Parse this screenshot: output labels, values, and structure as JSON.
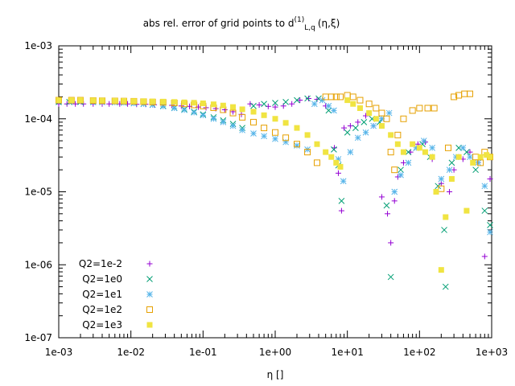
{
  "chart_data": {
    "type": "scatter",
    "title": {
      "main": "abs rel. error of grid points to d",
      "sup": "(1)",
      "sub": "L,q",
      "tail": "(η,ξ)"
    },
    "xlabel": "η []",
    "ylabel": "",
    "xscale": "log",
    "yscale": "log",
    "xlim": [
      0.001,
      1000
    ],
    "ylim": [
      1e-07,
      0.001
    ],
    "xticks": [
      "1e-03",
      "1e-02",
      "1e-01",
      "1e+00",
      "1e+01",
      "1e+02",
      "1e+03"
    ],
    "yticks": [
      "1e-07",
      "1e-06",
      "1e-05",
      "1e-04",
      "1e-03"
    ],
    "grid": false,
    "legend_position": "bottom-left",
    "series": [
      {
        "name": "Q2=1e-2",
        "marker": "plus",
        "color": "#9400d3",
        "points": [
          [
            0.001,
            0.00016
          ],
          [
            0.0013,
            0.00016
          ],
          [
            0.0017,
            0.00016
          ],
          [
            0.0022,
            0.00016
          ],
          [
            0.003,
            0.00016
          ],
          [
            0.004,
            0.00016
          ],
          [
            0.005,
            0.00016
          ],
          [
            0.007,
            0.00016
          ],
          [
            0.009,
            0.00016
          ],
          [
            0.012,
            0.000158
          ],
          [
            0.016,
            0.000158
          ],
          [
            0.021,
            0.000156
          ],
          [
            0.028,
            0.000155
          ],
          [
            0.037,
            0.000153
          ],
          [
            0.05,
            0.00015
          ],
          [
            0.065,
            0.000148
          ],
          [
            0.086,
            0.000145
          ],
          [
            0.11,
            0.000142
          ],
          [
            0.15,
            0.000138
          ],
          [
            0.2,
            0.000133
          ],
          [
            0.26,
            0.000125
          ],
          [
            0.34,
            0.000115
          ],
          [
            0.45,
            0.00016
          ],
          [
            0.6,
            0.000155
          ],
          [
            0.8,
            0.000148
          ],
          [
            1.0,
            0.000145
          ],
          [
            1.3,
            0.00015
          ],
          [
            1.7,
            0.00016
          ],
          [
            2.2,
            0.00018
          ],
          [
            2.9,
            0.00019
          ],
          [
            3.8,
            0.000185
          ],
          [
            5.0,
            0.00015
          ],
          [
            6.6,
            4e-05
          ],
          [
            7.5,
            1.8e-05
          ],
          [
            8.3,
            5.5e-06
          ],
          [
            9.0,
            7.5e-05
          ],
          [
            11,
            8e-05
          ],
          [
            14,
            9e-05
          ],
          [
            18,
            0.00011
          ],
          [
            23,
            8e-05
          ],
          [
            30,
            8.5e-06
          ],
          [
            36,
            5e-06
          ],
          [
            40,
            2e-06
          ],
          [
            45,
            7.5e-06
          ],
          [
            50,
            1.6e-05
          ],
          [
            60,
            2.5e-05
          ],
          [
            75,
            3.5e-05
          ],
          [
            95,
            4.5e-05
          ],
          [
            120,
            4.8e-05
          ],
          [
            150,
            2.8e-05
          ],
          [
            200,
            1.3e-05
          ],
          [
            260,
            1e-05
          ],
          [
            300,
            2e-05
          ],
          [
            350,
            3e-05
          ],
          [
            400,
            2.8e-05
          ],
          [
            500,
            3.5e-05
          ],
          [
            650,
            2.5e-05
          ],
          [
            800,
            1.3e-06
          ],
          [
            950,
            1.5e-05
          ]
        ]
      },
      {
        "name": "Q2=1e0",
        "marker": "cross",
        "color": "#009e73",
        "points": [
          [
            0.001,
            0.00017
          ],
          [
            0.0014,
            0.00017
          ],
          [
            0.002,
            0.00017
          ],
          [
            0.003,
            0.00017
          ],
          [
            0.004,
            0.00017
          ],
          [
            0.006,
            0.000168
          ],
          [
            0.008,
            0.000166
          ],
          [
            0.011,
            0.000164
          ],
          [
            0.015,
            0.00016
          ],
          [
            0.02,
            0.000156
          ],
          [
            0.028,
            0.00015
          ],
          [
            0.04,
            0.000142
          ],
          [
            0.055,
            0.000135
          ],
          [
            0.075,
            0.000125
          ],
          [
            0.1,
            0.000115
          ],
          [
            0.14,
            0.000105
          ],
          [
            0.19,
            9.5e-05
          ],
          [
            0.26,
            8.5e-05
          ],
          [
            0.35,
            7.5e-05
          ],
          [
            0.5,
            0.00015
          ],
          [
            0.7,
            0.00016
          ],
          [
            1.0,
            0.000165
          ],
          [
            1.4,
            0.00017
          ],
          [
            2.0,
            0.00018
          ],
          [
            2.8,
            0.00019
          ],
          [
            4.0,
            0.00019
          ],
          [
            5.5,
            0.00013
          ],
          [
            6.5,
            3.8e-05
          ],
          [
            7.5,
            2.3e-05
          ],
          [
            8.3,
            7.5e-06
          ],
          [
            10,
            6.5e-05
          ],
          [
            13,
            7.5e-05
          ],
          [
            17,
            9e-05
          ],
          [
            22,
            0.0001
          ],
          [
            28,
            9e-05
          ],
          [
            35,
            6.5e-06
          ],
          [
            40,
            6.8e-07
          ],
          [
            55,
            2e-05
          ],
          [
            70,
            3.5e-05
          ],
          [
            90,
            4e-05
          ],
          [
            110,
            4.5e-05
          ],
          [
            140,
            3e-05
          ],
          [
            180,
            1.2e-05
          ],
          [
            220,
            3e-06
          ],
          [
            230,
            5e-07
          ],
          [
            280,
            2.5e-05
          ],
          [
            350,
            4e-05
          ],
          [
            450,
            3.5e-05
          ],
          [
            600,
            2e-05
          ],
          [
            800,
            5.5e-06
          ],
          [
            950,
            3.5e-06
          ]
        ]
      },
      {
        "name": "Q2=1e1",
        "marker": "star",
        "color": "#56b4e9",
        "points": [
          [
            0.001,
            0.000175
          ],
          [
            0.0015,
            0.000175
          ],
          [
            0.002,
            0.000175
          ],
          [
            0.003,
            0.000172
          ],
          [
            0.004,
            0.00017
          ],
          [
            0.006,
            0.000168
          ],
          [
            0.008,
            0.000166
          ],
          [
            0.011,
            0.000163
          ],
          [
            0.015,
            0.00016
          ],
          [
            0.02,
            0.000155
          ],
          [
            0.028,
            0.000148
          ],
          [
            0.04,
            0.00014
          ],
          [
            0.055,
            0.000132
          ],
          [
            0.075,
            0.000122
          ],
          [
            0.1,
            0.000112
          ],
          [
            0.14,
            0.0001
          ],
          [
            0.19,
            9e-05
          ],
          [
            0.26,
            8e-05
          ],
          [
            0.35,
            7e-05
          ],
          [
            0.5,
            6.3e-05
          ],
          [
            0.7,
            5.8e-05
          ],
          [
            1.0,
            5.3e-05
          ],
          [
            1.4,
            4.8e-05
          ],
          [
            2.0,
            4.3e-05
          ],
          [
            2.8,
            3.8e-05
          ],
          [
            3.5,
            0.00016
          ],
          [
            4.5,
            0.00018
          ],
          [
            5.5,
            0.00015
          ],
          [
            6.5,
            0.00013
          ],
          [
            7.5,
            2.8e-05
          ],
          [
            8.8,
            1.4e-05
          ],
          [
            11,
            3.5e-05
          ],
          [
            14,
            5.5e-05
          ],
          [
            18,
            6.5e-05
          ],
          [
            23,
            8e-05
          ],
          [
            30,
            0.0001
          ],
          [
            38,
            0.00012
          ],
          [
            45,
            1e-05
          ],
          [
            55,
            1.7e-05
          ],
          [
            70,
            2.5e-05
          ],
          [
            90,
            4e-05
          ],
          [
            115,
            5e-05
          ],
          [
            150,
            4e-05
          ],
          [
            200,
            1.5e-05
          ],
          [
            260,
            2e-05
          ],
          [
            320,
            3e-05
          ],
          [
            400,
            4e-05
          ],
          [
            500,
            3e-05
          ],
          [
            650,
            2.5e-05
          ],
          [
            800,
            1.2e-05
          ],
          [
            950,
            2.8e-06
          ]
        ]
      },
      {
        "name": "Q2=1e2",
        "marker": "square-open",
        "color": "#e6a000",
        "points": [
          [
            0.001,
            0.00018
          ],
          [
            0.0015,
            0.00018
          ],
          [
            0.002,
            0.00018
          ],
          [
            0.003,
            0.000178
          ],
          [
            0.004,
            0.000177
          ],
          [
            0.006,
            0.000176
          ],
          [
            0.008,
            0.000175
          ],
          [
            0.011,
            0.000174
          ],
          [
            0.015,
            0.000172
          ],
          [
            0.02,
            0.00017
          ],
          [
            0.028,
            0.000168
          ],
          [
            0.04,
            0.000165
          ],
          [
            0.055,
            0.00016
          ],
          [
            0.075,
            0.000155
          ],
          [
            0.1,
            0.00015
          ],
          [
            0.14,
            0.000142
          ],
          [
            0.19,
            0.000133
          ],
          [
            0.26,
            0.00012
          ],
          [
            0.35,
            0.000105
          ],
          [
            0.5,
            9e-05
          ],
          [
            0.7,
            7.5e-05
          ],
          [
            1.0,
            6.5e-05
          ],
          [
            1.4,
            5.5e-05
          ],
          [
            2.0,
            4.5e-05
          ],
          [
            2.8,
            3.5e-05
          ],
          [
            3.8,
            2.5e-05
          ],
          [
            5.0,
            0.0002
          ],
          [
            6.0,
            0.0002
          ],
          [
            7.0,
            0.0002
          ],
          [
            8.0,
            0.0002
          ],
          [
            10,
            0.00021
          ],
          [
            12,
            0.0002
          ],
          [
            15,
            0.00018
          ],
          [
            20,
            0.00016
          ],
          [
            25,
            0.00014
          ],
          [
            30,
            0.00012
          ],
          [
            35,
            0.0001
          ],
          [
            40,
            3.5e-05
          ],
          [
            45,
            2e-05
          ],
          [
            50,
            6e-05
          ],
          [
            60,
            0.0001
          ],
          [
            80,
            0.00013
          ],
          [
            100,
            0.00014
          ],
          [
            130,
            0.00014
          ],
          [
            160,
            0.00014
          ],
          [
            200,
            1.1e-05
          ],
          [
            250,
            4e-05
          ],
          [
            300,
            0.0002
          ],
          [
            350,
            0.00021
          ],
          [
            420,
            0.00022
          ],
          [
            500,
            0.00022
          ],
          [
            600,
            3e-05
          ],
          [
            700,
            2.5e-05
          ],
          [
            800,
            3.5e-05
          ],
          [
            950,
            3e-05
          ]
        ]
      },
      {
        "name": "Q2=1e3",
        "marker": "square-filled",
        "color": "#f0e442",
        "points": [
          [
            0.001,
            0.00018
          ],
          [
            0.0015,
            0.00018
          ],
          [
            0.002,
            0.00018
          ],
          [
            0.003,
            0.000179
          ],
          [
            0.004,
            0.000178
          ],
          [
            0.006,
            0.000177
          ],
          [
            0.008,
            0.000176
          ],
          [
            0.011,
            0.000175
          ],
          [
            0.015,
            0.000174
          ],
          [
            0.02,
            0.000173
          ],
          [
            0.028,
            0.000172
          ],
          [
            0.04,
            0.00017
          ],
          [
            0.055,
            0.000168
          ],
          [
            0.075,
            0.000166
          ],
          [
            0.1,
            0.000163
          ],
          [
            0.14,
            0.000158
          ],
          [
            0.19,
            0.000152
          ],
          [
            0.26,
            0.000145
          ],
          [
            0.35,
            0.000135
          ],
          [
            0.5,
            0.000125
          ],
          [
            0.7,
            0.000112
          ],
          [
            1.0,
            0.0001
          ],
          [
            1.4,
            8.8e-05
          ],
          [
            2.0,
            7.5e-05
          ],
          [
            2.8,
            6e-05
          ],
          [
            3.8,
            4.5e-05
          ],
          [
            5.0,
            3.5e-05
          ],
          [
            6.0,
            3e-05
          ],
          [
            7.0,
            2.5e-05
          ],
          [
            8.0,
            2.2e-05
          ],
          [
            10,
            0.00018
          ],
          [
            12,
            0.00016
          ],
          [
            15,
            0.00014
          ],
          [
            20,
            0.00012
          ],
          [
            25,
            0.0001
          ],
          [
            30,
            8e-05
          ],
          [
            40,
            6e-05
          ],
          [
            50,
            4.5e-05
          ],
          [
            60,
            3.5e-05
          ],
          [
            80,
            4.5e-05
          ],
          [
            100,
            4e-05
          ],
          [
            120,
            3.5e-05
          ],
          [
            150,
            3e-05
          ],
          [
            170,
            1e-05
          ],
          [
            200,
            8.5e-07
          ],
          [
            230,
            4.5e-06
          ],
          [
            280,
            1.5e-05
          ],
          [
            350,
            3e-05
          ],
          [
            450,
            5.5e-06
          ],
          [
            550,
            2.5e-05
          ],
          [
            700,
            3e-05
          ],
          [
            850,
            3.2e-05
          ],
          [
            950,
            3e-05
          ]
        ]
      }
    ]
  }
}
